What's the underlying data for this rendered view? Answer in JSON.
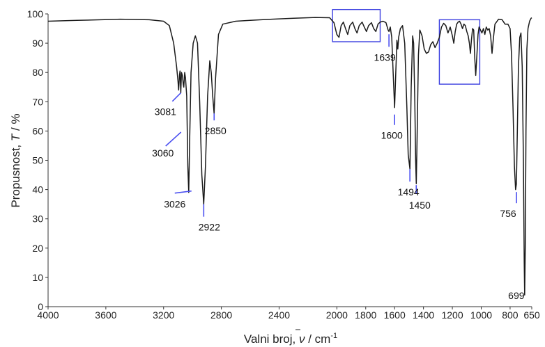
{
  "chart_data": {
    "type": "line",
    "xlabel_main": "Valni broj,",
    "xlabel_symbol": "ν",
    "xlabel_unit": "/ cm",
    "xlabel_exp": "-1",
    "ylabel_main": "Propusnost,",
    "ylabel_symbol": "T",
    "ylabel_unit": "/ %",
    "xlim": [
      4000,
      650
    ],
    "ylim": [
      0,
      100
    ],
    "x_ticks": [
      {
        "value": 4000,
        "label": "4000"
      },
      {
        "value": 3600,
        "label": "3600"
      },
      {
        "value": 3200,
        "label": "3200"
      },
      {
        "value": 2800,
        "label": "2800"
      },
      {
        "value": 2400,
        "label": "2400"
      },
      {
        "value": 2000,
        "label": "2000"
      },
      {
        "value": 1800,
        "label": "1800"
      },
      {
        "value": 1600,
        "label": "1600"
      },
      {
        "value": 1400,
        "label": "1400"
      },
      {
        "value": 1200,
        "label": "1200"
      },
      {
        "value": 1000,
        "label": "1000"
      },
      {
        "value": 800,
        "label": "800"
      },
      {
        "value": 650,
        "label": "650"
      }
    ],
    "y_ticks": [
      {
        "value": 0,
        "label": "0"
      },
      {
        "value": 10,
        "label": "10"
      },
      {
        "value": 20,
        "label": "20"
      },
      {
        "value": 30,
        "label": "30"
      },
      {
        "value": 40,
        "label": "40"
      },
      {
        "value": 50,
        "label": "50"
      },
      {
        "value": 60,
        "label": "60"
      },
      {
        "value": 70,
        "label": "70"
      },
      {
        "value": 80,
        "label": "80"
      },
      {
        "value": 90,
        "label": "90"
      },
      {
        "value": 100,
        "label": "100"
      }
    ],
    "series": [
      {
        "line_color": "#1a1a1a",
        "points": [
          [
            4000,
            97.5
          ],
          [
            3800,
            97.8
          ],
          [
            3500,
            98.2
          ],
          [
            3300,
            98.0
          ],
          [
            3200,
            97.5
          ],
          [
            3160,
            96.0
          ],
          [
            3130,
            90.0
          ],
          [
            3110,
            82.0
          ],
          [
            3100,
            77.0
          ],
          [
            3096,
            74.0
          ],
          [
            3090,
            79.0
          ],
          [
            3086,
            80.5
          ],
          [
            3081,
            73.0
          ],
          [
            3076,
            80.0
          ],
          [
            3070,
            79.0
          ],
          [
            3064,
            76.0
          ],
          [
            3060,
            75.0
          ],
          [
            3054,
            80.0
          ],
          [
            3048,
            78.0
          ],
          [
            3040,
            72.0
          ],
          [
            3032,
            48.0
          ],
          [
            3026,
            39.0
          ],
          [
            3020,
            55.0
          ],
          [
            3010,
            80.0
          ],
          [
            2995,
            90.0
          ],
          [
            2980,
            92.5
          ],
          [
            2965,
            90.0
          ],
          [
            2950,
            70.0
          ],
          [
            2935,
            45.0
          ],
          [
            2922,
            35.0
          ],
          [
            2910,
            48.0
          ],
          [
            2895,
            72.0
          ],
          [
            2880,
            84.0
          ],
          [
            2870,
            80.0
          ],
          [
            2860,
            72.0
          ],
          [
            2850,
            66.0
          ],
          [
            2840,
            78.0
          ],
          [
            2820,
            93.0
          ],
          [
            2790,
            96.5
          ],
          [
            2700,
            97.5
          ],
          [
            2600,
            97.8
          ],
          [
            2450,
            98.2
          ],
          [
            2300,
            98.5
          ],
          [
            2150,
            98.8
          ],
          [
            2050,
            98.7
          ],
          [
            2020,
            97.0
          ],
          [
            2000,
            93.0
          ],
          [
            1985,
            92.0
          ],
          [
            1970,
            96.0
          ],
          [
            1955,
            97.2
          ],
          [
            1940,
            95.0
          ],
          [
            1925,
            93.0
          ],
          [
            1910,
            96.0
          ],
          [
            1890,
            97.2
          ],
          [
            1875,
            95.0
          ],
          [
            1860,
            93.5
          ],
          [
            1845,
            96.0
          ],
          [
            1825,
            97.2
          ],
          [
            1810,
            95.5
          ],
          [
            1795,
            94.0
          ],
          [
            1780,
            96.0
          ],
          [
            1760,
            97.0
          ],
          [
            1745,
            95.0
          ],
          [
            1730,
            94.0
          ],
          [
            1715,
            96.5
          ],
          [
            1700,
            97.2
          ],
          [
            1680,
            97.5
          ],
          [
            1660,
            97.0
          ],
          [
            1645,
            94.5
          ],
          [
            1639,
            94.0
          ],
          [
            1630,
            95.5
          ],
          [
            1620,
            92.0
          ],
          [
            1610,
            80.0
          ],
          [
            1600,
            68.0
          ],
          [
            1592,
            80.0
          ],
          [
            1584,
            91.0
          ],
          [
            1578,
            88.0
          ],
          [
            1572,
            92.0
          ],
          [
            1560,
            95.0
          ],
          [
            1545,
            96.0
          ],
          [
            1530,
            90.0
          ],
          [
            1515,
            68.0
          ],
          [
            1506,
            52.0
          ],
          [
            1494,
            47.0
          ],
          [
            1485,
            75.0
          ],
          [
            1475,
            92.5
          ],
          [
            1468,
            90.0
          ],
          [
            1460,
            70.0
          ],
          [
            1454,
            50.0
          ],
          [
            1450,
            42.0
          ],
          [
            1444,
            58.0
          ],
          [
            1435,
            86.0
          ],
          [
            1425,
            94.5
          ],
          [
            1410,
            92.5
          ],
          [
            1395,
            88.0
          ],
          [
            1380,
            86.5
          ],
          [
            1365,
            87.0
          ],
          [
            1350,
            89.5
          ],
          [
            1335,
            90.5
          ],
          [
            1320,
            88.5
          ],
          [
            1305,
            90.0
          ],
          [
            1290,
            92.0
          ],
          [
            1275,
            95.5
          ],
          [
            1260,
            96.8
          ],
          [
            1245,
            96.0
          ],
          [
            1230,
            93.5
          ],
          [
            1215,
            95.5
          ],
          [
            1200,
            92.5
          ],
          [
            1190,
            90.0
          ],
          [
            1180,
            94.0
          ],
          [
            1170,
            96.5
          ],
          [
            1160,
            97.2
          ],
          [
            1150,
            97.5
          ],
          [
            1140,
            96.5
          ],
          [
            1130,
            95.0
          ],
          [
            1120,
            96.5
          ],
          [
            1110,
            96.0
          ],
          [
            1100,
            94.0
          ],
          [
            1090,
            92.5
          ],
          [
            1082,
            90.0
          ],
          [
            1075,
            86.5
          ],
          [
            1068,
            91.0
          ],
          [
            1060,
            95.0
          ],
          [
            1052,
            94.5
          ],
          [
            1045,
            85.0
          ],
          [
            1038,
            79.0
          ],
          [
            1030,
            86.0
          ],
          [
            1022,
            93.0
          ],
          [
            1015,
            95.5
          ],
          [
            1005,
            94.5
          ],
          [
            995,
            93.5
          ],
          [
            985,
            95.0
          ],
          [
            975,
            93.0
          ],
          [
            965,
            95.5
          ],
          [
            955,
            94.5
          ],
          [
            945,
            95.0
          ],
          [
            935,
            92.5
          ],
          [
            925,
            86.5
          ],
          [
            915,
            92.0
          ],
          [
            905,
            96.5
          ],
          [
            880,
            98.2
          ],
          [
            855,
            98.0
          ],
          [
            835,
            96.5
          ],
          [
            815,
            96.5
          ],
          [
            800,
            95.0
          ],
          [
            790,
            86.0
          ],
          [
            780,
            68.0
          ],
          [
            770,
            48.0
          ],
          [
            762,
            40.0
          ],
          [
            756,
            42.0
          ],
          [
            750,
            60.0
          ],
          [
            742,
            82.0
          ],
          [
            733,
            92.0
          ],
          [
            725,
            93.5
          ],
          [
            716,
            82.0
          ],
          [
            708,
            50.0
          ],
          [
            702,
            15.0
          ],
          [
            699,
            4.0
          ],
          [
            695,
            20.0
          ],
          [
            690,
            60.0
          ],
          [
            684,
            88.0
          ],
          [
            676,
            95.0
          ],
          [
            665,
            97.5
          ],
          [
            655,
            98.5
          ],
          [
            650,
            98.7
          ]
        ]
      }
    ],
    "peak_labels": [
      {
        "label": "3081",
        "x": 3081,
        "y": 73
      },
      {
        "label": "3060",
        "x": 3060,
        "y": 62
      },
      {
        "label": "3026",
        "x": 3026,
        "y": 39.5
      },
      {
        "label": "2922",
        "x": 2922,
        "y": 35
      },
      {
        "label": "2850",
        "x": 2850,
        "y": 66
      },
      {
        "label": "1639",
        "x": 1639,
        "y": 94
      },
      {
        "label": "1600",
        "x": 1600,
        "y": 68
      },
      {
        "label": "1494",
        "x": 1494,
        "y": 47
      },
      {
        "label": "1450",
        "x": 1450,
        "y": 42
      },
      {
        "label": "756",
        "x": 756,
        "y": 42
      },
      {
        "label": "699",
        "x": 699,
        "y": 4
      }
    ],
    "highlight_boxes": [
      {
        "x_from": 2030,
        "x_to": 1700,
        "y_from": 90.5,
        "y_to": 101.5
      },
      {
        "x_from": 1290,
        "x_to": 1010,
        "y_from": 76,
        "y_to": 98
      }
    ],
    "marker_color": "#4a4ff0",
    "box_color": "#3b3fe0",
    "grid": false,
    "legend": "none"
  }
}
